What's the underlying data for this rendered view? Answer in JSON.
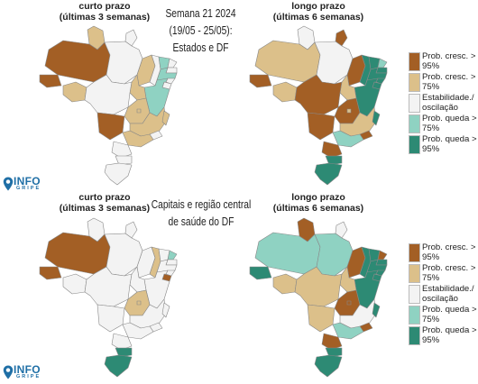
{
  "colors": {
    "cresc95": "#a35f25",
    "cresc75": "#dcc08a",
    "estab": "#f3f3f3",
    "queda75": "#8fd2c2",
    "queda95": "#2d8a74",
    "border": "#888888",
    "logo": "#1f6fa6"
  },
  "titles": {
    "top_center": [
      "Semana 21 2024",
      "(19/05 - 25/05):",
      "Estados e DF"
    ],
    "bottom_center": [
      "Capitais e região central",
      "de saúde do DF"
    ]
  },
  "panels": [
    {
      "id": "top-short",
      "title_line1": "curto prazo",
      "title_line2": "(últimas 3 semanas)"
    },
    {
      "id": "top-long",
      "title_line1": "longo prazo",
      "title_line2": "(últimas 6 semanas)"
    },
    {
      "id": "bottom-short",
      "title_line1": "curto prazo",
      "title_line2": "(últimas 3 semanas)"
    },
    {
      "id": "bottom-long",
      "title_line1": "longo prazo",
      "title_line2": "(últimas 6 semanas)"
    }
  ],
  "legend": [
    {
      "key": "cresc95",
      "label": "Prob. cresc. > 95%"
    },
    {
      "key": "cresc75",
      "label": "Prob. cresc. > 75%"
    },
    {
      "key": "estab",
      "label": "Estabilidade./ oscilação"
    },
    {
      "key": "queda75",
      "label": "Prob. queda > 75%"
    },
    {
      "key": "queda95",
      "label": "Prob. queda > 95%"
    }
  ],
  "logo": {
    "text": "INFO",
    "sub": "GRIPE"
  },
  "maps": {
    "top_short": {
      "AC": "cresc95",
      "AM": "cresc95",
      "RR": "cresc75",
      "AP": "estab",
      "PA": "estab",
      "MA": "cresc75",
      "PI": "estab",
      "CE": "queda75",
      "RN": "estab",
      "PB": "estab",
      "PE": "queda75",
      "AL": "estab",
      "SE": "estab",
      "BA": "queda75",
      "TO": "cresc75",
      "RO": "cresc75",
      "MT": "estab",
      "GO": "cresc75",
      "DF": "cresc75",
      "MS": "cresc95",
      "MG": "cresc75",
      "ES": "cresc75",
      "RJ": "estab",
      "SP": "cresc75",
      "PR": "estab",
      "SC": "estab",
      "RS": "estab"
    },
    "top_long": {
      "AC": "cresc95",
      "AM": "cresc75",
      "RR": "estab",
      "AP": "cresc95",
      "PA": "estab",
      "MA": "cresc95",
      "PI": "queda95",
      "CE": "queda95",
      "RN": "queda75",
      "PB": "queda95",
      "PE": "queda95",
      "AL": "queda95",
      "SE": "queda95",
      "BA": "queda95",
      "TO": "cresc75",
      "RO": "cresc75",
      "MT": "cresc95",
      "GO": "cresc95",
      "DF": "cresc75",
      "MS": "cresc95",
      "MG": "cresc75",
      "ES": "queda95",
      "RJ": "cresc95",
      "SP": "queda75",
      "PR": "cresc95",
      "SC": "queda95",
      "RS": "queda95"
    },
    "bottom_short": {
      "AC": "cresc95",
      "AM": "cresc95",
      "RR": "estab",
      "AP": "estab",
      "PA": "estab",
      "MA": "estab",
      "PI": "cresc75",
      "CE": "estab",
      "RN": "queda75",
      "PB": "estab",
      "PE": "estab",
      "AL": "estab",
      "SE": "cresc95",
      "BA": "estab",
      "TO": "estab",
      "RO": "estab",
      "MT": "estab",
      "GO": "cresc75",
      "DF": "cresc75",
      "MS": "estab",
      "MG": "estab",
      "ES": "estab",
      "RJ": "estab",
      "SP": "estab",
      "PR": "estab",
      "SC": "queda95",
      "RS": "queda95"
    },
    "bottom_long": {
      "AC": "queda95",
      "AM": "queda75",
      "RR": "cresc95",
      "AP": "estab",
      "PA": "queda75",
      "MA": "cresc95",
      "PI": "queda95",
      "CE": "queda95",
      "RN": "cresc95",
      "PB": "queda95",
      "PE": "queda95",
      "AL": "queda95",
      "SE": "queda95",
      "BA": "queda95",
      "TO": "cresc75",
      "RO": "cresc75",
      "MT": "cresc75",
      "GO": "cresc95",
      "DF": "cresc95",
      "MS": "cresc75",
      "MG": "estab",
      "ES": "queda95",
      "RJ": "cresc95",
      "SP": "queda75",
      "PR": "cresc95",
      "SC": "queda95",
      "RS": "queda95"
    }
  }
}
